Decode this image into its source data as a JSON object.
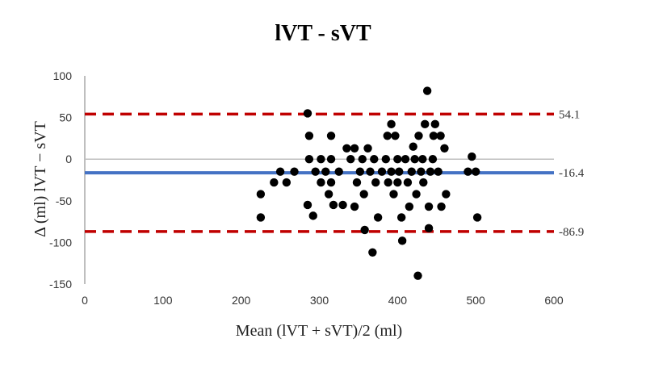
{
  "chart_data": {
    "type": "scatter",
    "title": "lVT - sVT",
    "xlabel": "Mean (lVT + sVT)/2 (ml)",
    "ylabel": "Δ (ml) lVT − sVT",
    "xlim": [
      0,
      600
    ],
    "ylim": [
      -150,
      100
    ],
    "xticks": [
      "0",
      "100",
      "200",
      "300",
      "400",
      "500",
      "600"
    ],
    "yticks": [
      "100",
      "50",
      "0",
      "-50",
      "-100",
      "-150"
    ],
    "grid": false,
    "reference_lines": [
      {
        "label": "54.1",
        "value": 54.1,
        "style": "dashed",
        "color": "#c00000"
      },
      {
        "label": "-16.4",
        "value": -16.4,
        "style": "solid",
        "color": "#4472c4"
      },
      {
        "label": "-86.9",
        "value": -86.9,
        "style": "dashed",
        "color": "#c00000"
      }
    ],
    "zero_line_color": "#bfbfbf",
    "marker_color": "#000000",
    "points": [
      [
        225,
        -42
      ],
      [
        225,
        -70
      ],
      [
        242,
        -28
      ],
      [
        250,
        -15
      ],
      [
        258,
        -28
      ],
      [
        268,
        -15
      ],
      [
        285,
        55
      ],
      [
        287,
        28
      ],
      [
        287,
        0
      ],
      [
        285,
        -55
      ],
      [
        292,
        -68
      ],
      [
        295,
        -15
      ],
      [
        302,
        0
      ],
      [
        302,
        -28
      ],
      [
        308,
        -15
      ],
      [
        312,
        -42
      ],
      [
        315,
        28
      ],
      [
        315,
        0
      ],
      [
        315,
        -28
      ],
      [
        318,
        -55
      ],
      [
        325,
        -15
      ],
      [
        330,
        -55
      ],
      [
        335,
        13
      ],
      [
        340,
        0
      ],
      [
        345,
        -57
      ],
      [
        345,
        13
      ],
      [
        348,
        -28
      ],
      [
        352,
        -15
      ],
      [
        355,
        0
      ],
      [
        357,
        -42
      ],
      [
        358,
        -85
      ],
      [
        362,
        13
      ],
      [
        365,
        -15
      ],
      [
        368,
        -112
      ],
      [
        370,
        0
      ],
      [
        372,
        -28
      ],
      [
        375,
        -70
      ],
      [
        380,
        -15
      ],
      [
        385,
        0
      ],
      [
        387,
        28
      ],
      [
        388,
        -28
      ],
      [
        392,
        42
      ],
      [
        392,
        -15
      ],
      [
        395,
        -42
      ],
      [
        397,
        28
      ],
      [
        400,
        0
      ],
      [
        400,
        -28
      ],
      [
        402,
        -15
      ],
      [
        405,
        -70
      ],
      [
        406,
        -98
      ],
      [
        410,
        0
      ],
      [
        413,
        -28
      ],
      [
        415,
        -57
      ],
      [
        418,
        -15
      ],
      [
        420,
        15
      ],
      [
        422,
        0
      ],
      [
        424,
        -42
      ],
      [
        426,
        -140
      ],
      [
        427,
        28
      ],
      [
        430,
        -15
      ],
      [
        432,
        0
      ],
      [
        433,
        -28
      ],
      [
        435,
        42
      ],
      [
        438,
        82
      ],
      [
        440,
        -57
      ],
      [
        440,
        -83
      ],
      [
        442,
        -15
      ],
      [
        445,
        0
      ],
      [
        446,
        28
      ],
      [
        448,
        42
      ],
      [
        452,
        -15
      ],
      [
        455,
        28
      ],
      [
        456,
        -57
      ],
      [
        460,
        13
      ],
      [
        462,
        -42
      ],
      [
        490,
        -15
      ],
      [
        495,
        3
      ],
      [
        500,
        -15
      ],
      [
        502,
        -70
      ]
    ]
  }
}
